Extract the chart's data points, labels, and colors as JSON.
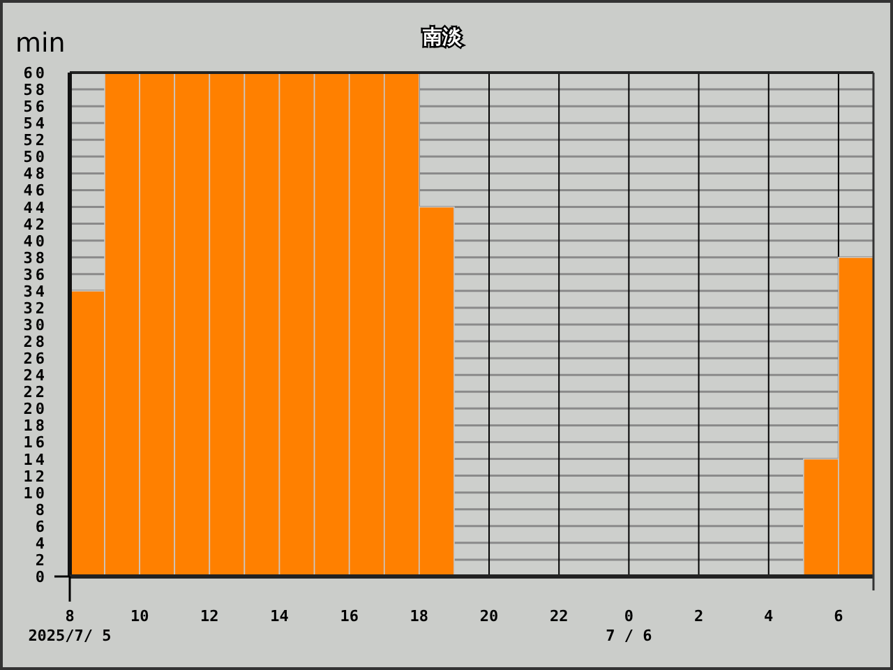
{
  "chart_data": {
    "type": "histogram",
    "title": "南淡",
    "ylabel": "min",
    "bins": [
      "2025-07-05T08:00",
      "2025-07-05T09:00",
      "2025-07-05T10:00",
      "2025-07-05T11:00",
      "2025-07-05T12:00",
      "2025-07-05T13:00",
      "2025-07-05T14:00",
      "2025-07-05T15:00",
      "2025-07-05T16:00",
      "2025-07-05T17:00",
      "2025-07-05T18:00",
      "2025-07-05T19:00",
      "2025-07-05T20:00",
      "2025-07-05T21:00",
      "2025-07-05T22:00",
      "2025-07-05T23:00",
      "2025-07-06T00:00",
      "2025-07-06T01:00",
      "2025-07-06T02:00",
      "2025-07-06T03:00",
      "2025-07-06T04:00",
      "2025-07-06T05:00",
      "2025-07-06T06:00",
      "2025-07-06T07:00"
    ],
    "values": [
      34,
      60,
      60,
      60,
      60,
      60,
      60,
      60,
      60,
      60,
      44,
      0,
      0,
      0,
      0,
      0,
      0,
      0,
      0,
      0,
      0,
      14,
      38
    ],
    "color": "#ff8000",
    "xlim": [
      "2025-07-05T08:00",
      "2025-07-06T07:00"
    ],
    "xticks": [
      {
        "value": "2025-07-05T08:00",
        "label": "8"
      },
      {
        "value": "2025-07-05T10:00",
        "label": "10"
      },
      {
        "value": "2025-07-05T12:00",
        "label": "12"
      },
      {
        "value": "2025-07-05T14:00",
        "label": "14"
      },
      {
        "value": "2025-07-05T16:00",
        "label": "16"
      },
      {
        "value": "2025-07-05T18:00",
        "label": "18"
      },
      {
        "value": "2025-07-05T20:00",
        "label": "20"
      },
      {
        "value": "2025-07-05T22:00",
        "label": "22"
      },
      {
        "value": "2025-07-06T00:00",
        "label": "0"
      },
      {
        "value": "2025-07-06T02:00",
        "label": "2"
      },
      {
        "value": "2025-07-06T04:00",
        "label": "4"
      },
      {
        "value": "2025-07-06T06:00",
        "label": "6"
      }
    ],
    "ylim": [
      0,
      60
    ],
    "yticks": [
      0,
      2,
      4,
      6,
      8,
      10,
      12,
      14,
      16,
      18,
      20,
      22,
      24,
      26,
      28,
      30,
      32,
      34,
      36,
      38,
      40,
      42,
      44,
      46,
      48,
      50,
      52,
      54,
      56,
      58,
      60
    ],
    "grid": true,
    "annotations": [
      "2025/7/ 5",
      "7 / 6"
    ]
  }
}
